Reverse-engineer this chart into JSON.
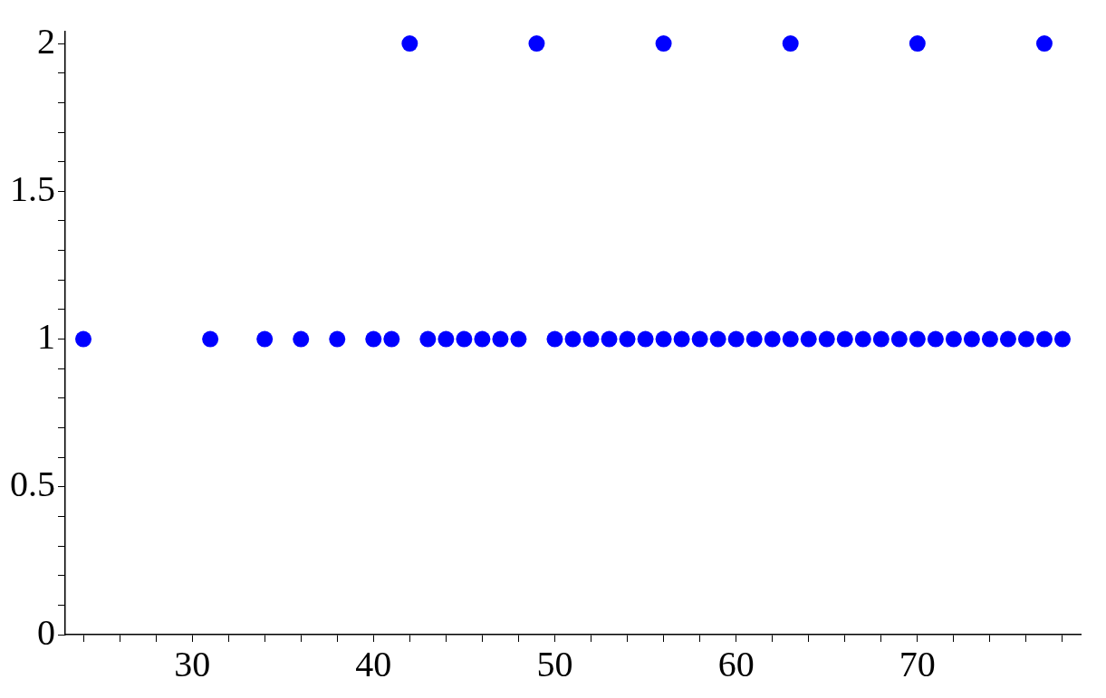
{
  "chart_data": {
    "type": "scatter",
    "series": [
      {
        "color": "#0000ff",
        "x": [
          24,
          31,
          34,
          36,
          38,
          40,
          41,
          42,
          43,
          44,
          45,
          46,
          47,
          48,
          49,
          50,
          51,
          52,
          53,
          54,
          55,
          56,
          57,
          58,
          59,
          60,
          61,
          62,
          63,
          64,
          65,
          66,
          67,
          68,
          69,
          70,
          71,
          72,
          73,
          74,
          75,
          76,
          77,
          78,
          56,
          63,
          70,
          77
        ],
        "values": [
          1,
          1,
          1,
          1,
          1,
          1,
          1,
          2,
          1,
          1,
          1,
          1,
          1,
          1,
          2,
          1,
          1,
          1,
          1,
          1,
          1,
          2,
          1,
          1,
          1,
          1,
          1,
          1,
          2,
          1,
          1,
          1,
          1,
          1,
          1,
          2,
          1,
          1,
          1,
          1,
          1,
          1,
          2,
          1,
          1,
          1,
          1,
          1
        ]
      }
    ],
    "xlim": [
      23,
      79
    ],
    "ylim": [
      0,
      2.04
    ],
    "xticks": [
      {
        "value": 24,
        "label": null
      },
      {
        "value": 26,
        "label": null
      },
      {
        "value": 28,
        "label": null
      },
      30,
      {
        "value": 32,
        "label": null
      },
      {
        "value": 34,
        "label": null
      },
      {
        "value": 36,
        "label": null
      },
      {
        "value": 38,
        "label": null
      },
      40,
      {
        "value": 42,
        "label": null
      },
      {
        "value": 44,
        "label": null
      },
      {
        "value": 46,
        "label": null
      },
      {
        "value": 48,
        "label": null
      },
      50,
      {
        "value": 52,
        "label": null
      },
      {
        "value": 54,
        "label": null
      },
      {
        "value": 56,
        "label": null
      },
      {
        "value": 58,
        "label": null
      },
      60,
      {
        "value": 62,
        "label": null
      },
      {
        "value": 64,
        "label": null
      },
      {
        "value": 66,
        "label": null
      },
      {
        "value": 68,
        "label": null
      },
      70,
      {
        "value": 72,
        "label": null
      },
      {
        "value": 74,
        "label": null
      },
      {
        "value": 76,
        "label": null
      },
      {
        "value": 78,
        "label": null
      }
    ],
    "yticks": [
      0,
      {
        "value": 0.1,
        "label": null
      },
      {
        "value": 0.2,
        "label": null
      },
      {
        "value": 0.3,
        "label": null
      },
      {
        "value": 0.4,
        "label": null
      },
      {
        "value": 0.5,
        "label": "0.5"
      },
      {
        "value": 0.6,
        "label": null
      },
      {
        "value": 0.7,
        "label": null
      },
      {
        "value": 0.8,
        "label": null
      },
      {
        "value": 0.9,
        "label": null
      },
      1,
      {
        "value": 1.1,
        "label": null
      },
      {
        "value": 1.2,
        "label": null
      },
      {
        "value": 1.3,
        "label": null
      },
      {
        "value": 1.4,
        "label": null
      },
      {
        "value": 1.5,
        "label": "1.5"
      },
      {
        "value": 1.6,
        "label": null
      },
      {
        "value": 1.7,
        "label": null
      },
      {
        "value": 1.8,
        "label": null
      },
      {
        "value": 1.9,
        "label": null
      },
      2
    ],
    "marker": "circle"
  }
}
